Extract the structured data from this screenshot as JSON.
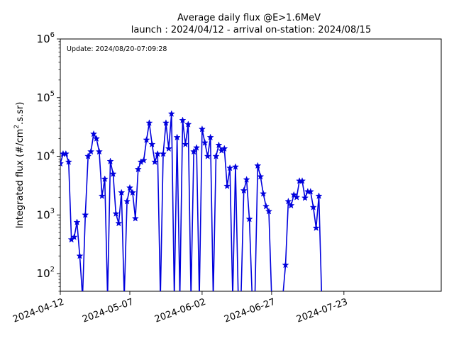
{
  "chart_data": {
    "type": "line",
    "title": "Average daily flux @E>1.6MeV",
    "subtitle": "launch : 2024/04/12 - arrival on-station: 2024/08/15",
    "annotation": "Update: 2024/08/20-07:09:28",
    "ylabel_prefix": "Integrated flux (#/cm",
    "ylabel_sup": "2",
    "ylabel_suffix": ".s.sr)",
    "xlabel": "",
    "yscale": "log",
    "ylim": [
      50,
      1000000
    ],
    "xlim": [
      "2024-04-12",
      "2024-08-27"
    ],
    "grid": false,
    "line_color": "#0000dd",
    "marker": "star",
    "xticks": [
      "2024-04-12",
      "2024-05-07",
      "2024-06-02",
      "2024-06-27",
      "2024-07-23"
    ],
    "yticks": [
      {
        "value": 100,
        "base": "10",
        "exp": "2"
      },
      {
        "value": 1000,
        "base": "10",
        "exp": "3"
      },
      {
        "value": 10000,
        "base": "10",
        "exp": "4"
      },
      {
        "value": 100000,
        "base": "10",
        "exp": "5"
      },
      {
        "value": 1000000,
        "base": "10",
        "exp": "6"
      }
    ],
    "series": [
      {
        "points": [
          [
            "2024-04-12",
            7500
          ],
          [
            "2024-04-13",
            11000
          ],
          [
            "2024-04-14",
            11000
          ],
          [
            "2024-04-15",
            8000
          ],
          [
            "2024-04-16",
            380
          ],
          [
            "2024-04-17",
            420
          ],
          [
            "2024-04-18",
            750
          ],
          [
            "2024-04-19",
            200
          ],
          [
            "2024-04-20",
            40
          ],
          [
            "2024-04-21",
            1000
          ],
          [
            "2024-04-22",
            10000
          ],
          [
            "2024-04-23",
            12000
          ],
          [
            "2024-04-24",
            24000
          ],
          [
            "2024-04-25",
            20000
          ],
          [
            "2024-04-26",
            12000
          ],
          [
            "2024-04-27",
            2100
          ],
          [
            "2024-04-28",
            4100
          ],
          [
            "2024-04-29",
            40
          ],
          [
            "2024-04-30",
            8200
          ],
          [
            "2024-05-01",
            5000
          ],
          [
            "2024-05-02",
            1050
          ],
          [
            "2024-05-03",
            720
          ],
          [
            "2024-05-04",
            2400
          ],
          [
            "2024-05-05",
            40
          ],
          [
            "2024-05-06",
            1700
          ],
          [
            "2024-05-07",
            2900
          ],
          [
            "2024-05-08",
            2400
          ],
          [
            "2024-05-09",
            870
          ],
          [
            "2024-05-10",
            6000
          ],
          [
            "2024-05-11",
            8000
          ],
          [
            "2024-05-12",
            8500
          ],
          [
            "2024-05-13",
            19000
          ],
          [
            "2024-05-14",
            37000
          ],
          [
            "2024-05-15",
            16000
          ],
          [
            "2024-05-16",
            8000
          ],
          [
            "2024-05-17",
            11000
          ],
          [
            "2024-05-18",
            40
          ],
          [
            "2024-05-19",
            11000
          ],
          [
            "2024-05-20",
            37000
          ],
          [
            "2024-05-21",
            13500
          ],
          [
            "2024-05-22",
            53000
          ],
          [
            "2024-05-23",
            40
          ],
          [
            "2024-05-24",
            21000
          ],
          [
            "2024-05-25",
            40
          ],
          [
            "2024-05-26",
            41000
          ],
          [
            "2024-05-27",
            16000
          ],
          [
            "2024-05-28",
            35000
          ],
          [
            "2024-05-29",
            40
          ],
          [
            "2024-05-30",
            12000
          ],
          [
            "2024-05-31",
            14000
          ],
          [
            "2024-06-01",
            40
          ],
          [
            "2024-06-02",
            29000
          ],
          [
            "2024-06-03",
            17000
          ],
          [
            "2024-06-04",
            10000
          ],
          [
            "2024-06-05",
            21000
          ],
          [
            "2024-06-06",
            40
          ],
          [
            "2024-06-07",
            10000
          ],
          [
            "2024-06-08",
            15500
          ],
          [
            "2024-06-09",
            12500
          ],
          [
            "2024-06-10",
            13500
          ],
          [
            "2024-06-11",
            3100
          ],
          [
            "2024-06-12",
            6300
          ],
          [
            "2024-06-13",
            40
          ],
          [
            "2024-06-14",
            6600
          ],
          [
            "2024-06-15",
            40
          ],
          [
            "2024-06-16",
            40
          ],
          [
            "2024-06-17",
            2600
          ],
          [
            "2024-06-18",
            4000
          ],
          [
            "2024-06-19",
            850
          ],
          [
            "2024-06-20",
            40
          ],
          [
            "2024-06-21",
            40
          ],
          [
            "2024-06-22",
            6900
          ],
          [
            "2024-06-23",
            4500
          ],
          [
            "2024-06-24",
            2300
          ],
          [
            "2024-06-25",
            1400
          ],
          [
            "2024-06-26",
            1150
          ],
          [
            "2024-06-27",
            40
          ],
          [
            "2024-06-28",
            40
          ],
          [
            "2024-06-29",
            40
          ],
          [
            "2024-06-30",
            40
          ],
          [
            "2024-07-01",
            40
          ],
          [
            "2024-07-02",
            140
          ],
          [
            "2024-07-03",
            1700
          ],
          [
            "2024-07-04",
            1450
          ],
          [
            "2024-07-05",
            2200
          ],
          [
            "2024-07-06",
            2000
          ],
          [
            "2024-07-07",
            3800
          ],
          [
            "2024-07-08",
            3800
          ],
          [
            "2024-07-09",
            1950
          ],
          [
            "2024-07-10",
            2500
          ],
          [
            "2024-07-11",
            2500
          ],
          [
            "2024-07-12",
            1350
          ],
          [
            "2024-07-13",
            600
          ],
          [
            "2024-07-14",
            2100
          ],
          [
            "2024-07-15",
            40
          ]
        ]
      }
    ]
  }
}
